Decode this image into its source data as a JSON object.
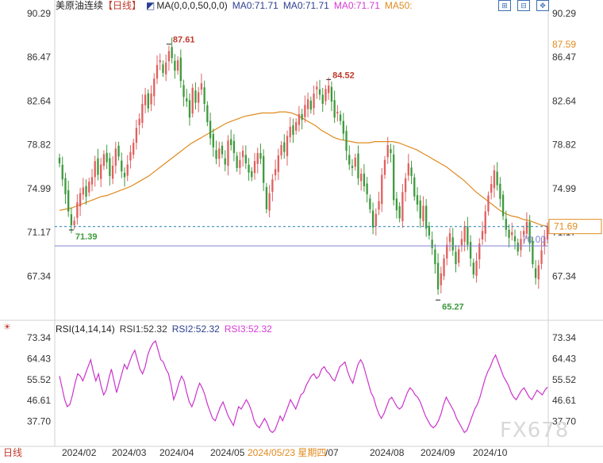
{
  "header": {
    "symbol": "美原油连续",
    "period_tag": "【日线】",
    "ma_formula": "MA(0,0,0,50,0,0)",
    "ma_items": [
      {
        "text": "MA0:71.71",
        "color": "#2c3e8f"
      },
      {
        "text": "MA0:71.71",
        "color": "#2c3e8f"
      },
      {
        "text": "MA0:71.71",
        "color": "#d63ad6"
      },
      {
        "text": "MA50:",
        "color": "#e08a1e"
      }
    ],
    "toolbar_icons": [
      "zoom-in-icon",
      "zoom-out-icon",
      "move-icon"
    ]
  },
  "rsi_header": {
    "formula": "RSI(14,14,14)",
    "rsi1": "RSI1:52.32",
    "rsi2": "RSI2:52.32",
    "rsi3": "RSI3:52.32",
    "colors": {
      "rsi1": "#333333",
      "rsi2": "#2c3e8f",
      "rsi3": "#d63ad6"
    }
  },
  "bottom_bar": {
    "period_label": "日线",
    "highlight_date": "2024/05/23 星期四",
    "month_labels": [
      "2024/02",
      "2024/03",
      "2024/04",
      "2024/05",
      "/07",
      "2024/08",
      "2024/09",
      "2024/10"
    ]
  },
  "watermark": "FX678",
  "colors": {
    "up": "#e06060",
    "down": "#3d9a3d",
    "ma50": "#e08a1e",
    "rsi": "#cc33cc",
    "dashed_line": "#1e7bb0",
    "hline": "#8080d8",
    "price_tag": "#e08a1e"
  },
  "chart_data": [
    {
      "type": "candlestick",
      "title": "美原油连续【日线】",
      "y_ticks": [
        "90.29",
        "86.47",
        "82.64",
        "78.82",
        "74.99",
        "71.17",
        "67.34"
      ],
      "right_y_ticks": [
        "90.29",
        "86.47",
        "82.64",
        "78.82",
        "74.99",
        "71.17",
        "67.34"
      ],
      "ylim": [
        63.5,
        90.29
      ],
      "x_labels": [
        "2024/02",
        "2024/03",
        "2024/04",
        "2024/05",
        "/07",
        "2024/08",
        "2024/09",
        "2024/10"
      ],
      "annotations": [
        {
          "text": "87.61",
          "kind": "high",
          "color": "#c0392b"
        },
        {
          "text": "84.52",
          "kind": "high",
          "color": "#c0392b"
        },
        {
          "text": "71.39",
          "kind": "low",
          "color": "#3d9a3d"
        },
        {
          "text": "65.27",
          "kind": "low",
          "color": "#3d9a3d"
        }
      ],
      "price_tags": [
        {
          "text": "87.59",
          "color": "#e08a1e"
        },
        {
          "text": "71.69",
          "color": "#e08a1e",
          "boxed": true
        },
        {
          "text": "70.00",
          "color": "#8080d8"
        }
      ],
      "closes": [
        77.2,
        75.8,
        74.5,
        73.0,
        71.8,
        72.2,
        73.8,
        74.6,
        75.1,
        74.3,
        75.6,
        76.0,
        77.4,
        76.2,
        77.1,
        78.0,
        77.3,
        76.1,
        77.0,
        78.5,
        77.8,
        76.5,
        76.0,
        77.1,
        78.2,
        79.0,
        80.3,
        81.1,
        82.4,
        83.2,
        82.0,
        83.3,
        84.6,
        85.8,
        86.2,
        85.1,
        86.0,
        87.0,
        86.4,
        85.3,
        86.2,
        84.4,
        83.0,
        82.6,
        81.2,
        83.8,
        82.5,
        83.4,
        84.2,
        82.4,
        80.8,
        79.4,
        78.6,
        77.6,
        78.5,
        78.0,
        77.1,
        79.2,
        78.8,
        78.1,
        76.8,
        77.5,
        78.3,
        77.2,
        76.4,
        76.0,
        77.4,
        78.1,
        77.6,
        75.5,
        73.2,
        74.6,
        75.8,
        76.7,
        77.9,
        78.8,
        78.2,
        79.6,
        80.4,
        79.7,
        80.8,
        81.5,
        81.0,
        82.3,
        82.8,
        81.9,
        83.3,
        83.9,
        83.2,
        82.4,
        83.7,
        84.0,
        82.6,
        81.2,
        81.7,
        80.9,
        79.8,
        78.3,
        77.1,
        76.8,
        77.7,
        75.9,
        76.3,
        75.2,
        74.5,
        73.2,
        71.6,
        72.8,
        73.9,
        76.2,
        77.5,
        78.8,
        78.1,
        74.0,
        73.1,
        72.4,
        74.7,
        75.9,
        77.2,
        76.1,
        74.3,
        73.6,
        72.4,
        73.5,
        71.5,
        70.9,
        69.8,
        68.4,
        66.2,
        67.6,
        68.9,
        70.1,
        71.1,
        69.6,
        68.4,
        69.7,
        70.6,
        71.7,
        70.1,
        68.9,
        67.5,
        68.7,
        70.2,
        71.3,
        73.0,
        74.4,
        75.4,
        76.6,
        75.3,
        74.1,
        72.6,
        71.4,
        70.7,
        71.2,
        70.4,
        69.5,
        70.6,
        71.3,
        72.1,
        70.2,
        68.4,
        67.2,
        68.3,
        69.6,
        70.8,
        71.69
      ],
      "ma50": [
        73.1,
        73.2,
        73.3,
        73.5,
        73.7,
        73.9,
        74.1,
        74.3,
        74.4,
        74.6,
        74.8,
        75.0,
        75.2,
        75.5,
        75.8,
        76.1,
        76.5,
        76.9,
        77.3,
        77.7,
        78.1,
        78.5,
        78.9,
        79.2,
        79.5,
        79.8,
        80.1,
        80.4,
        80.7,
        80.9,
        81.1,
        81.3,
        81.4,
        81.5,
        81.6,
        81.6,
        81.6,
        81.7,
        81.7,
        81.6,
        81.4,
        81.1,
        80.8,
        80.5,
        80.1,
        79.8,
        79.5,
        79.3,
        79.2,
        79.1,
        79.0,
        79.0,
        79.0,
        79.1,
        79.1,
        79.1,
        79.1,
        79.0,
        78.8,
        78.6,
        78.4,
        78.1,
        77.8,
        77.5,
        77.2,
        76.9,
        76.5,
        76.1,
        75.7,
        75.2,
        74.7,
        74.3,
        73.9,
        73.5,
        73.1,
        72.8,
        72.6,
        72.5,
        72.3,
        72.2,
        72.0,
        71.8,
        71.7
      ],
      "rsi": [
        57.0,
        52.0,
        47.0,
        44.0,
        45.0,
        49.0,
        54.0,
        58.0,
        57.0,
        55.0,
        58.0,
        61.0,
        64.0,
        59.0,
        55.0,
        58.0,
        53.0,
        49.0,
        51.0,
        56.0,
        60.0,
        55.0,
        50.0,
        54.0,
        58.0,
        62.0,
        60.0,
        63.0,
        66.0,
        68.0,
        64.0,
        60.0,
        58.0,
        61.0,
        66.0,
        69.0,
        71.0,
        72.0,
        68.0,
        64.0,
        63.0,
        60.0,
        58.0,
        53.0,
        47.0,
        50.0,
        54.0,
        57.0,
        55.0,
        50.0,
        46.0,
        44.0,
        47.0,
        51.0,
        54.0,
        52.0,
        49.0,
        45.0,
        42.0,
        39.0,
        38.0,
        41.0,
        44.0,
        46.0,
        43.0,
        40.0,
        38.0,
        36.0,
        40.0,
        44.0,
        43.0,
        45.0,
        47.0,
        45.0,
        42.0,
        38.0,
        36.0,
        35.0,
        37.0,
        39.0,
        37.0,
        34.0,
        33.0,
        34.0,
        37.0,
        40.0,
        38.0,
        41.0,
        44.0,
        47.0,
        45.0,
        43.0,
        46.0,
        49.0,
        50.0,
        53.0,
        55.0,
        57.0,
        58.0,
        56.0,
        57.0,
        60.0,
        61.0,
        59.0,
        58.0,
        56.0,
        55.0,
        58.0,
        61.0,
        62.0,
        63.0,
        59.0,
        56.0,
        54.0,
        58.0,
        62.0,
        64.0,
        62.0,
        58.0,
        54.0,
        50.0,
        48.0,
        44.0,
        41.0,
        39.0,
        41.0,
        44.0,
        47.0,
        48.0,
        46.0,
        44.0,
        43.0,
        44.0,
        47.0,
        50.0,
        52.0,
        51.0,
        49.0,
        48.0,
        46.0,
        43.0,
        40.0,
        38.0,
        36.0,
        35.0,
        36.0,
        38.0,
        41.0,
        45.0,
        48.0,
        46.0,
        44.0,
        42.0,
        39.0,
        37.0,
        35.0,
        33.0,
        34.0,
        37.0,
        40.0,
        43.0,
        45.0,
        48.0,
        52.0,
        56.0,
        59.0,
        61.0,
        64.0,
        66.0,
        63.0,
        60.0,
        57.0,
        55.0,
        53.0,
        50.0,
        48.0,
        47.0,
        49.0,
        51.0,
        52.0,
        50.0,
        48.0,
        47.0,
        49.0,
        51.0,
        50.0,
        49.0,
        51.0,
        52.32
      ]
    },
    {
      "type": "line",
      "title": "RSI(14,14,14)",
      "y_ticks": [
        "73.34",
        "64.43",
        "55.52",
        "46.61",
        "37.70"
      ],
      "right_y_ticks": [
        "73.34",
        "64.43",
        "55.52",
        "46.61",
        "37.70"
      ],
      "ylim": [
        28.8,
        73.34
      ]
    }
  ]
}
